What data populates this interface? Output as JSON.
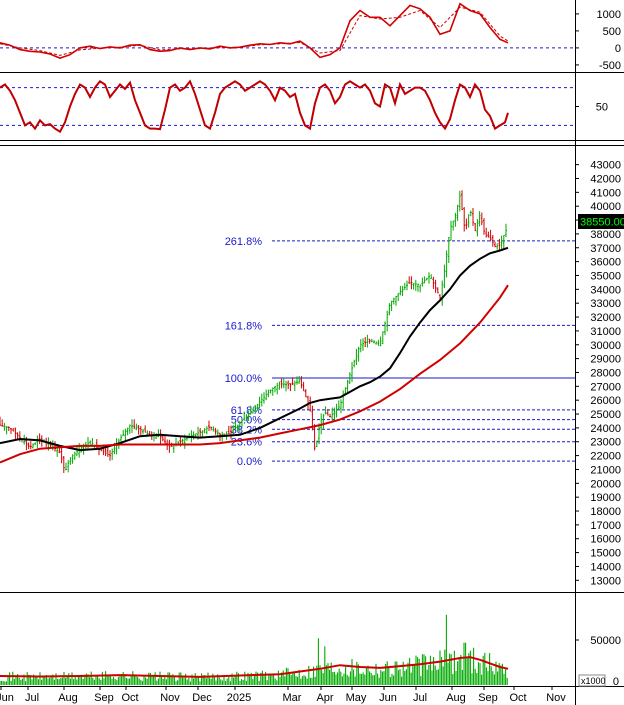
{
  "chart_data": [
    {
      "type": "line",
      "panel": "macd",
      "yticks": [
        1000,
        500,
        0,
        -500
      ],
      "ylim": [
        -650,
        1350
      ],
      "reference_line": 0,
      "series": [
        {
          "color": "#d00000",
          "style": "solid",
          "x": [
            0,
            10,
            20,
            30,
            40,
            50,
            60,
            70,
            80,
            90,
            100,
            110,
            120,
            130,
            140,
            150,
            160,
            170,
            180,
            190,
            200,
            210,
            220,
            230,
            240,
            250,
            260,
            270,
            280,
            290,
            300,
            310,
            320,
            330,
            340,
            350,
            360,
            370,
            380,
            390,
            400,
            410,
            420,
            430,
            440,
            450,
            460,
            470,
            480,
            490,
            500,
            508
          ],
          "y": [
            150,
            80,
            -50,
            -100,
            -120,
            -180,
            -300,
            -200,
            0,
            50,
            -20,
            30,
            0,
            80,
            90,
            -50,
            -100,
            -80,
            0,
            -50,
            0,
            -30,
            50,
            0,
            20,
            80,
            120,
            100,
            150,
            120,
            200,
            0,
            -280,
            -200,
            0,
            800,
            1100,
            900,
            900,
            650,
            950,
            1250,
            1150,
            900,
            400,
            500,
            1300,
            1100,
            1000,
            600,
            250,
            150
          ]
        },
        {
          "color": "#d00000",
          "style": "dashed",
          "x": [
            0,
            20,
            40,
            60,
            80,
            100,
            120,
            140,
            160,
            180,
            200,
            220,
            240,
            260,
            280,
            300,
            320,
            340,
            360,
            380,
            400,
            420,
            440,
            460,
            480,
            500,
            508
          ],
          "y": [
            120,
            0,
            -80,
            -220,
            -60,
            -10,
            20,
            80,
            -60,
            -30,
            -20,
            10,
            20,
            90,
            120,
            160,
            -150,
            -80,
            950,
            850,
            900,
            1100,
            600,
            1200,
            1050,
            350,
            200
          ]
        }
      ]
    },
    {
      "type": "line",
      "panel": "stochastic",
      "yticks": [
        50
      ],
      "ylim": [
        0,
        100
      ],
      "reference_lines": [
        80,
        20
      ],
      "series": [
        {
          "color": "#c00000",
          "x": [
            0,
            5,
            10,
            15,
            20,
            25,
            30,
            35,
            40,
            45,
            50,
            55,
            60,
            65,
            70,
            75,
            80,
            85,
            90,
            95,
            100,
            105,
            110,
            115,
            120,
            125,
            130,
            135,
            140,
            145,
            150,
            155,
            160,
            165,
            170,
            175,
            180,
            185,
            190,
            195,
            200,
            205,
            210,
            215,
            220,
            225,
            230,
            235,
            240,
            245,
            250,
            255,
            260,
            265,
            270,
            275,
            280,
            285,
            290,
            295,
            300,
            305,
            310,
            315,
            320,
            325,
            330,
            335,
            340,
            345,
            350,
            355,
            360,
            365,
            370,
            375,
            380,
            385,
            390,
            395,
            400,
            405,
            410,
            415,
            420,
            425,
            430,
            435,
            440,
            445,
            450,
            455,
            460,
            465,
            470,
            475,
            480,
            485,
            490,
            495,
            500,
            505,
            508
          ],
          "y": [
            80,
            85,
            75,
            60,
            40,
            20,
            25,
            15,
            28,
            20,
            22,
            15,
            10,
            25,
            50,
            70,
            85,
            80,
            65,
            80,
            90,
            85,
            65,
            75,
            85,
            78,
            88,
            60,
            40,
            20,
            15,
            15,
            14,
            45,
            80,
            85,
            75,
            80,
            90,
            70,
            45,
            20,
            15,
            40,
            70,
            80,
            85,
            90,
            85,
            75,
            80,
            85,
            90,
            85,
            75,
            60,
            80,
            75,
            65,
            70,
            40,
            20,
            15,
            55,
            80,
            85,
            75,
            55,
            65,
            85,
            90,
            85,
            80,
            85,
            75,
            55,
            50,
            85,
            80,
            55,
            85,
            70,
            75,
            80,
            80,
            75,
            60,
            40,
            25,
            15,
            30,
            60,
            85,
            80,
            65,
            85,
            75,
            45,
            35,
            15,
            20,
            25,
            40
          ]
        }
      ]
    },
    {
      "type": "candlestick",
      "panel": "price",
      "yticks": [
        43000,
        42000,
        41000,
        40000,
        39000,
        38000,
        37000,
        36000,
        35000,
        34000,
        33000,
        32000,
        31000,
        30000,
        29000,
        28000,
        27000,
        26000,
        25000,
        24000,
        23000,
        22000,
        21000,
        20000,
        19000,
        18000,
        17000,
        16000,
        15000,
        14000,
        13000
      ],
      "ylim": [
        12300,
        44200
      ],
      "last_price": "38550.00",
      "x_months": [
        "Jun",
        "Jul",
        "Aug",
        "Sep",
        "Oct",
        "Nov",
        "Dec",
        "2025",
        "Mar",
        "Apr",
        "May",
        "Jun",
        "Jul",
        "Aug",
        "Sep",
        "Oct",
        "Nov"
      ],
      "fibonacci": [
        {
          "label": "261.8%",
          "value": 37500
        },
        {
          "label": "161.8%",
          "value": 31400
        },
        {
          "label": "100.0%",
          "value": 27600
        },
        {
          "label": "61.8%",
          "value": 25300
        },
        {
          "label": "50.0%",
          "value": 24600
        },
        {
          "label": "38.2%",
          "value": 23900
        },
        {
          "label": "23.6%",
          "value": 23000
        },
        {
          "label": "0.0%",
          "value": 21600
        }
      ],
      "price_path": {
        "x": [
          0,
          10,
          20,
          30,
          40,
          50,
          60,
          65,
          70,
          80,
          90,
          100,
          110,
          120,
          130,
          140,
          150,
          160,
          170,
          180,
          190,
          200,
          210,
          220,
          230,
          240,
          250,
          260,
          270,
          280,
          290,
          300,
          310,
          315,
          320,
          325,
          330,
          340,
          350,
          360,
          370,
          380,
          390,
          400,
          410,
          420,
          430,
          440,
          445,
          450,
          455,
          460,
          465,
          470,
          475,
          480,
          485,
          490,
          495,
          500,
          505,
          508
        ],
        "y": [
          24200,
          24000,
          23300,
          22600,
          23200,
          22800,
          22200,
          20800,
          21800,
          22500,
          23000,
          22400,
          22000,
          23200,
          24200,
          23900,
          23500,
          23400,
          22600,
          23000,
          23400,
          23700,
          24100,
          23500,
          23600,
          24400,
          25100,
          25900,
          26700,
          27200,
          27100,
          27400,
          25400,
          22300,
          24400,
          25100,
          24800,
          25600,
          27900,
          30000,
          30300,
          30100,
          33000,
          33800,
          34500,
          34300,
          35000,
          33400,
          35600,
          38400,
          39200,
          40800,
          38200,
          39800,
          38200,
          39400,
          37900,
          37700,
          37100,
          37200,
          38100,
          38550
        ]
      },
      "series": [
        {
          "name": "MA (black)",
          "color": "#000000",
          "x": [
            0,
            20,
            40,
            60,
            80,
            100,
            120,
            140,
            160,
            180,
            200,
            220,
            240,
            260,
            280,
            300,
            310,
            320,
            330,
            340,
            350,
            360,
            370,
            380,
            390,
            400,
            410,
            420,
            430,
            440,
            450,
            460,
            470,
            480,
            490,
            500,
            508
          ],
          "y": [
            22900,
            23200,
            23100,
            22700,
            22400,
            22500,
            22900,
            23400,
            23500,
            23400,
            23300,
            23400,
            23500,
            24000,
            24700,
            25400,
            25800,
            26000,
            26100,
            26200,
            26600,
            27000,
            27300,
            27700,
            28300,
            29400,
            30600,
            31600,
            32500,
            33200,
            34000,
            35000,
            35700,
            36200,
            36600,
            36800,
            37000
          ]
        },
        {
          "name": "MA (red)",
          "color": "#d00000",
          "x": [
            0,
            20,
            40,
            60,
            80,
            100,
            120,
            140,
            160,
            180,
            200,
            220,
            240,
            260,
            280,
            300,
            320,
            340,
            360,
            380,
            400,
            420,
            440,
            460,
            480,
            500,
            508
          ],
          "y": [
            21500,
            22100,
            22500,
            22600,
            22700,
            22700,
            22800,
            22800,
            22800,
            22800,
            22800,
            22900,
            23100,
            23300,
            23600,
            23900,
            24200,
            24600,
            25200,
            25900,
            26800,
            27900,
            28900,
            30100,
            31600,
            33400,
            34300
          ]
        }
      ]
    },
    {
      "type": "bar",
      "panel": "volume",
      "yticks": [
        50000
      ],
      "unit_label": "x1000",
      "ylim": [
        0,
        100000
      ],
      "volume_ma_color": "#d00000",
      "bar_color": "#00aa00",
      "spikes": [
        {
          "x": 318,
          "value": 52000
        },
        {
          "x": 325,
          "value": 43000
        },
        {
          "x": 447,
          "value": 78000
        },
        {
          "x": 465,
          "value": 47000
        }
      ],
      "volume_ma": {
        "x": [
          0,
          40,
          80,
          120,
          160,
          200,
          240,
          280,
          300,
          320,
          340,
          360,
          380,
          400,
          420,
          440,
          460,
          470,
          480,
          490,
          500,
          508
        ],
        "y": [
          10000,
          9500,
          10000,
          11000,
          10000,
          9000,
          10500,
          12000,
          15000,
          18000,
          22000,
          20000,
          19000,
          21000,
          23000,
          26000,
          30000,
          31000,
          28000,
          24000,
          20000,
          18000
        ]
      }
    }
  ]
}
